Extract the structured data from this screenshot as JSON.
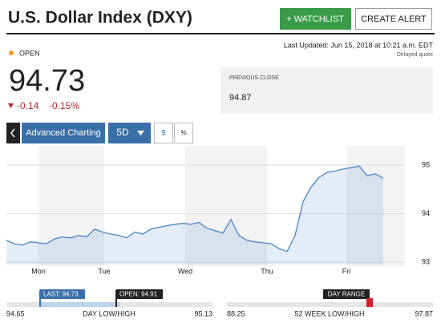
{
  "header": {
    "title": "U.S. Dollar Index (DXY)",
    "watchlist_button": "+ WATCHLIST",
    "alert_button": "CREATE ALERT",
    "last_updated": "Last Updated: Jun 15, 2018 at 10:21 a.m. EDT",
    "delayed": "- Delayed quote"
  },
  "quote": {
    "status": "OPEN",
    "price": "94.73",
    "change": "-0.14",
    "change_pct": "-0.15%",
    "previous_close_label": "PREVIOUS CLOSE",
    "previous_close": "94.87"
  },
  "toolbar": {
    "advanced": "Advanced Charting",
    "period": "5D",
    "dollar": "$",
    "percent": "%"
  },
  "chart": {
    "type": "area",
    "categories": [
      "Mon",
      "Tue",
      "Wed",
      "Thu",
      "Fri"
    ],
    "values": [
      93.45,
      93.38,
      93.35,
      93.42,
      93.4,
      93.38,
      93.48,
      93.52,
      93.5,
      93.55,
      93.52,
      93.68,
      93.62,
      93.58,
      93.55,
      93.5,
      93.62,
      93.58,
      93.68,
      93.72,
      93.75,
      93.78,
      93.8,
      93.78,
      93.82,
      93.7,
      93.65,
      93.6,
      93.88,
      93.55,
      93.45,
      93.42,
      93.4,
      93.38,
      93.28,
      93.22,
      93.55,
      94.25,
      94.55,
      94.75,
      94.85,
      94.88,
      94.92,
      94.95,
      94.98,
      94.78,
      94.82,
      94.73
    ],
    "ylim": [
      92.82,
      95.43
    ],
    "yticks": [
      93,
      94,
      95
    ],
    "color": "#4a86c8"
  },
  "ranges": {
    "last": "LAST: 94.73",
    "open": "OPEN: 94.91",
    "day_low": "94.65",
    "day_label": "DAY LOW/HIGH",
    "day_high": "95.13",
    "day_range": "DAY RANGE",
    "week_low": "88.25",
    "week_label": "52 WEEK LOW/HIGH",
    "week_high": "97.87"
  }
}
